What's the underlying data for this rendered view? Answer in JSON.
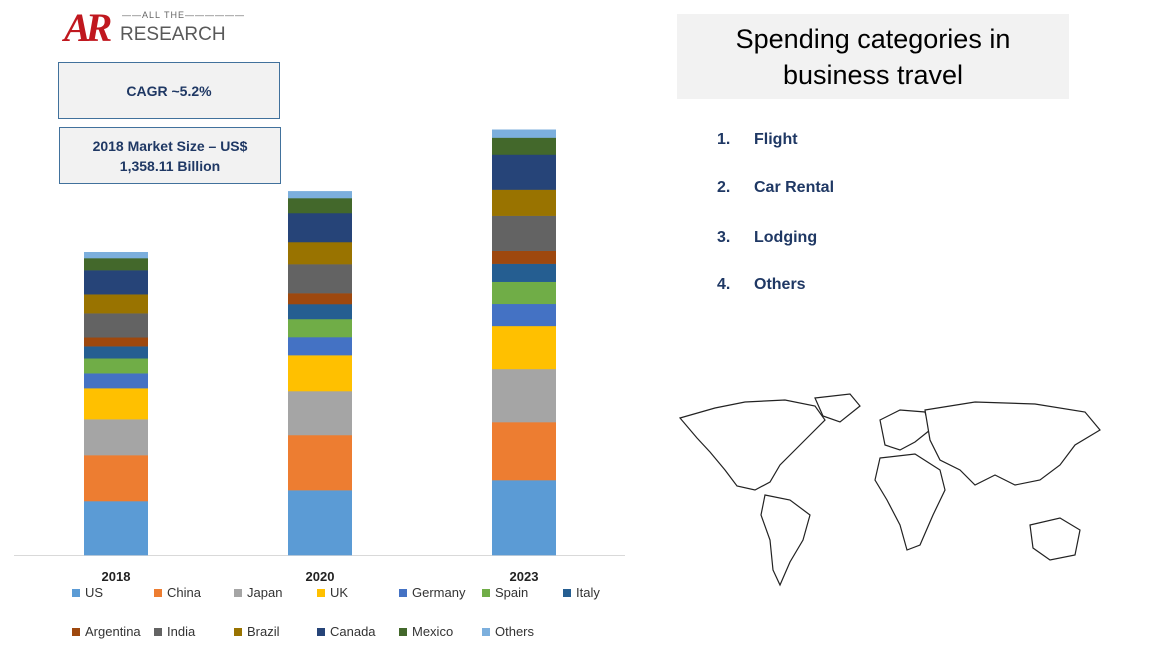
{
  "logo": {
    "mark": "AR",
    "top": "ALL THE",
    "bottom": "RESEARCH"
  },
  "cagr": "CAGR ~5.2%",
  "market_size": {
    "line1": "2018 Market Size – US$",
    "line2": "1,358.11 Billion"
  },
  "chart_data": {
    "type": "bar",
    "stacked": true,
    "title": "",
    "xlabel": "",
    "ylabel": "",
    "grid": false,
    "legend_position": "bottom",
    "categories": [
      "2018",
      "2020",
      "2023"
    ],
    "series": [
      {
        "name": "US",
        "color": "#5b9bd5",
        "values": [
          242,
          291,
          336
        ]
      },
      {
        "name": "China",
        "color": "#ed7d31",
        "values": [
          206,
          247,
          260
        ]
      },
      {
        "name": "Japan",
        "color": "#a5a5a5",
        "values": [
          161,
          197,
          238
        ]
      },
      {
        "name": "UK",
        "color": "#ffc000",
        "values": [
          139,
          161,
          193
        ]
      },
      {
        "name": "Germany",
        "color": "#4472c4",
        "values": [
          67,
          81,
          99
        ]
      },
      {
        "name": "Spain",
        "color": "#70ad47",
        "values": [
          67,
          81,
          99
        ]
      },
      {
        "name": "Italy",
        "color": "#255e91",
        "values": [
          54,
          67,
          81
        ]
      },
      {
        "name": "Argentina",
        "color": "#9e480e",
        "values": [
          40,
          49,
          58
        ]
      },
      {
        "name": "India",
        "color": "#636363",
        "values": [
          108,
          130,
          157
        ]
      },
      {
        "name": "Brazil",
        "color": "#997300",
        "values": [
          85,
          99,
          117
        ]
      },
      {
        "name": "Canada",
        "color": "#264478",
        "values": [
          108,
          130,
          157
        ]
      },
      {
        "name": "Mexico",
        "color": "#43682b",
        "values": [
          54,
          67,
          76
        ]
      },
      {
        "name": "Others",
        "color": "#7cafdd",
        "values": [
          27,
          31,
          36
        ]
      }
    ]
  },
  "panel": {
    "title_line1": "Spending categories in",
    "title_line2": "business travel",
    "items": [
      {
        "num": "1.",
        "label": "Flight"
      },
      {
        "num": "2.",
        "label": "Car Rental"
      },
      {
        "num": "3.",
        "label": "Lodging"
      },
      {
        "num": "4.",
        "label": "Others"
      }
    ]
  }
}
